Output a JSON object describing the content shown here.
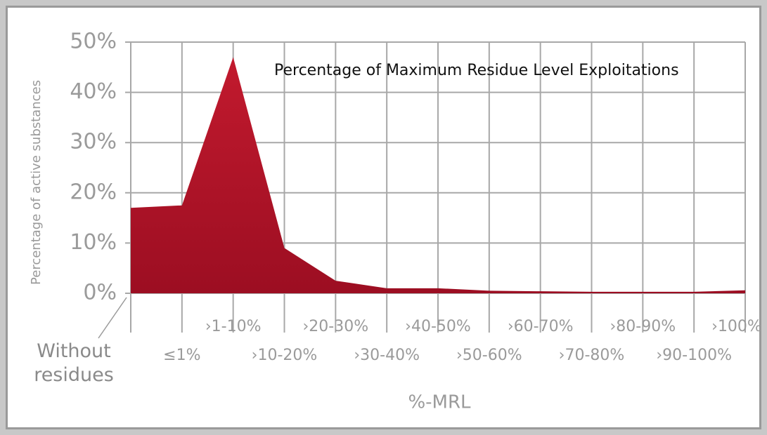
{
  "chart_data": {
    "type": "area",
    "title": "Percentage of Maximum Residue Level Exploitations",
    "y_label": "Percentage of active substances",
    "x_label": "%-MRL",
    "categories": [
      "Without residues",
      "≤1%",
      "›1-10%",
      "›10-20%",
      "›20-30%",
      "›30-40%",
      "›40-50%",
      "›50-60%",
      "›60-70%",
      "›70-80%",
      "›80-90%",
      "›90-100%",
      "›100%"
    ],
    "values": [
      17,
      17.5,
      47,
      9,
      2.5,
      1,
      1,
      0.5,
      0.4,
      0.3,
      0.3,
      0.3,
      0.6
    ],
    "color": "#b3142b",
    "ylim": [
      0,
      50
    ],
    "yticks": [
      {
        "value": 0,
        "label": "0%"
      },
      {
        "value": 10,
        "label": "10%"
      },
      {
        "value": 20,
        "label": "20%"
      },
      {
        "value": 30,
        "label": "30%"
      },
      {
        "value": 40,
        "label": "40%"
      },
      {
        "value": 50,
        "label": "50%"
      }
    ],
    "grid": true
  }
}
